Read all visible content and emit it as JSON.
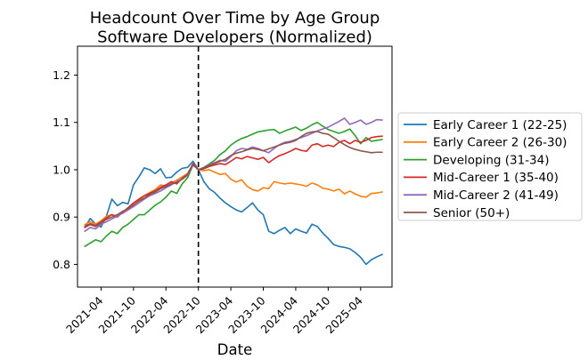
{
  "chart_data": {
    "type": "line",
    "title_line1": "Headcount Over Time by Age Group",
    "title_line2": "Software Developers (Normalized)",
    "xlabel": "Date",
    "ylabel": "",
    "grid": false,
    "legend_position": "right-outside",
    "x_unit": "month",
    "x_start_label": "2021-01",
    "x_end_label": "2025-08",
    "xlim_month_indices": [
      -1.35,
      56.8
    ],
    "ylim": [
      0.752,
      1.261
    ],
    "xtick_month_indices": [
      3,
      9,
      15,
      21,
      27,
      33,
      39,
      45,
      51
    ],
    "xtick_labels": [
      "2021-04",
      "2021-10",
      "2022-04",
      "2022-10",
      "2023-04",
      "2023-10",
      "2024-04",
      "2024-10",
      "2025-04"
    ],
    "ytick_values": [
      0.8,
      0.9,
      1.0,
      1.1,
      1.2
    ],
    "ytick_labels": [
      "0.8",
      "0.9",
      "1.0",
      "1.1",
      "1.2"
    ],
    "vline": {
      "month_index": 21,
      "at_label": "2022-10",
      "style": "dashed",
      "color": "#000000"
    },
    "normalization_value": 1.0,
    "series": [
      {
        "name": "Early Career 1 (22-25)",
        "color": "#1f77b4",
        "values": [
          0.878,
          0.897,
          0.885,
          0.879,
          0.902,
          0.938,
          0.924,
          0.931,
          0.928,
          0.968,
          0.985,
          1.004,
          1.0,
          0.992,
          1.002,
          0.983,
          0.984,
          0.995,
          1.003,
          1.005,
          1.018,
          1.0,
          0.975,
          0.96,
          0.952,
          0.94,
          0.93,
          0.922,
          0.915,
          0.911,
          0.92,
          0.93,
          0.915,
          0.905,
          0.87,
          0.865,
          0.872,
          0.878,
          0.865,
          0.875,
          0.87,
          0.866,
          0.885,
          0.88,
          0.866,
          0.855,
          0.842,
          0.838,
          0.836,
          0.833,
          0.825,
          0.815,
          0.8,
          0.81,
          0.816,
          0.821
        ]
      },
      {
        "name": "Early Career 2 (26-30)",
        "color": "#ff7f0e",
        "values": [
          0.884,
          0.89,
          0.885,
          0.892,
          0.902,
          0.905,
          0.902,
          0.912,
          0.918,
          0.925,
          0.935,
          0.945,
          0.952,
          0.958,
          0.968,
          0.965,
          0.972,
          0.978,
          0.985,
          0.992,
          1.012,
          1.0,
          0.998,
          1.0,
          0.995,
          0.99,
          0.992,
          0.98,
          0.974,
          0.979,
          0.965,
          0.958,
          0.955,
          0.962,
          0.96,
          0.975,
          0.972,
          0.97,
          0.972,
          0.97,
          0.968,
          0.965,
          0.972,
          0.968,
          0.961,
          0.959,
          0.955,
          0.959,
          0.949,
          0.955,
          0.949,
          0.944,
          0.942,
          0.95,
          0.951,
          0.953
        ]
      },
      {
        "name": "Developing (31-34)",
        "color": "#2ca02c",
        "values": [
          0.838,
          0.845,
          0.852,
          0.848,
          0.86,
          0.87,
          0.865,
          0.878,
          0.885,
          0.895,
          0.905,
          0.905,
          0.915,
          0.925,
          0.932,
          0.942,
          0.955,
          0.95,
          0.97,
          0.983,
          1.01,
          1.0,
          1.005,
          1.012,
          1.02,
          1.032,
          1.04,
          1.052,
          1.06,
          1.066,
          1.07,
          1.075,
          1.08,
          1.082,
          1.084,
          1.085,
          1.077,
          1.082,
          1.086,
          1.09,
          1.083,
          1.088,
          1.095,
          1.1,
          1.092,
          1.085,
          1.081,
          1.077,
          1.081,
          1.086,
          1.072,
          1.055,
          1.068,
          1.06,
          1.062,
          1.064
        ]
      },
      {
        "name": "Mid-Career 1 (35-40)",
        "color": "#d62728",
        "values": [
          0.88,
          0.886,
          0.882,
          0.89,
          0.898,
          0.905,
          0.9,
          0.91,
          0.92,
          0.93,
          0.938,
          0.945,
          0.95,
          0.955,
          0.963,
          0.968,
          0.975,
          0.97,
          0.982,
          0.99,
          1.013,
          1.0,
          1.002,
          1.007,
          1.01,
          1.013,
          1.011,
          1.018,
          1.026,
          1.023,
          1.028,
          1.025,
          1.022,
          1.026,
          1.015,
          1.023,
          1.03,
          1.034,
          1.039,
          1.045,
          1.041,
          1.039,
          1.052,
          1.055,
          1.049,
          1.052,
          1.049,
          1.058,
          1.062,
          1.055,
          1.062,
          1.058,
          1.062,
          1.068,
          1.07,
          1.071
        ]
      },
      {
        "name": "Mid-Career 2 (41-49)",
        "color": "#9467bd",
        "values": [
          0.87,
          0.878,
          0.875,
          0.885,
          0.89,
          0.896,
          0.902,
          0.908,
          0.915,
          0.922,
          0.93,
          0.938,
          0.945,
          0.95,
          0.955,
          0.962,
          0.968,
          0.975,
          0.98,
          0.988,
          1.01,
          1.0,
          1.005,
          1.01,
          1.015,
          1.02,
          1.018,
          1.028,
          1.04,
          1.045,
          1.043,
          1.048,
          1.045,
          1.04,
          1.036,
          1.045,
          1.053,
          1.058,
          1.06,
          1.064,
          1.068,
          1.072,
          1.077,
          1.082,
          1.086,
          1.09,
          1.096,
          1.102,
          1.109,
          1.096,
          1.1,
          1.105,
          1.096,
          1.1,
          1.106,
          1.105
        ]
      },
      {
        "name": "Senior (50+)",
        "color": "#8c564b",
        "values": [
          0.878,
          0.884,
          0.88,
          0.888,
          0.895,
          0.9,
          0.905,
          0.912,
          0.918,
          0.926,
          0.934,
          0.94,
          0.948,
          0.953,
          0.96,
          0.965,
          0.97,
          0.973,
          0.98,
          0.99,
          1.011,
          1.0,
          1.004,
          1.009,
          1.013,
          1.018,
          1.022,
          1.03,
          1.035,
          1.038,
          1.042,
          1.045,
          1.043,
          1.04,
          1.044,
          1.048,
          1.052,
          1.056,
          1.058,
          1.062,
          1.07,
          1.077,
          1.08,
          1.081,
          1.077,
          1.075,
          1.068,
          1.06,
          1.053,
          1.047,
          1.043,
          1.04,
          1.038,
          1.036,
          1.037,
          1.037
        ]
      }
    ],
    "legend_labels": [
      "Early Career 1 (22-25)",
      "Early Career 2 (26-30)",
      "Developing (31-34)",
      "Mid-Career 1 (35-40)",
      "Mid-Career 2 (41-49)",
      "Senior (50+)"
    ]
  }
}
